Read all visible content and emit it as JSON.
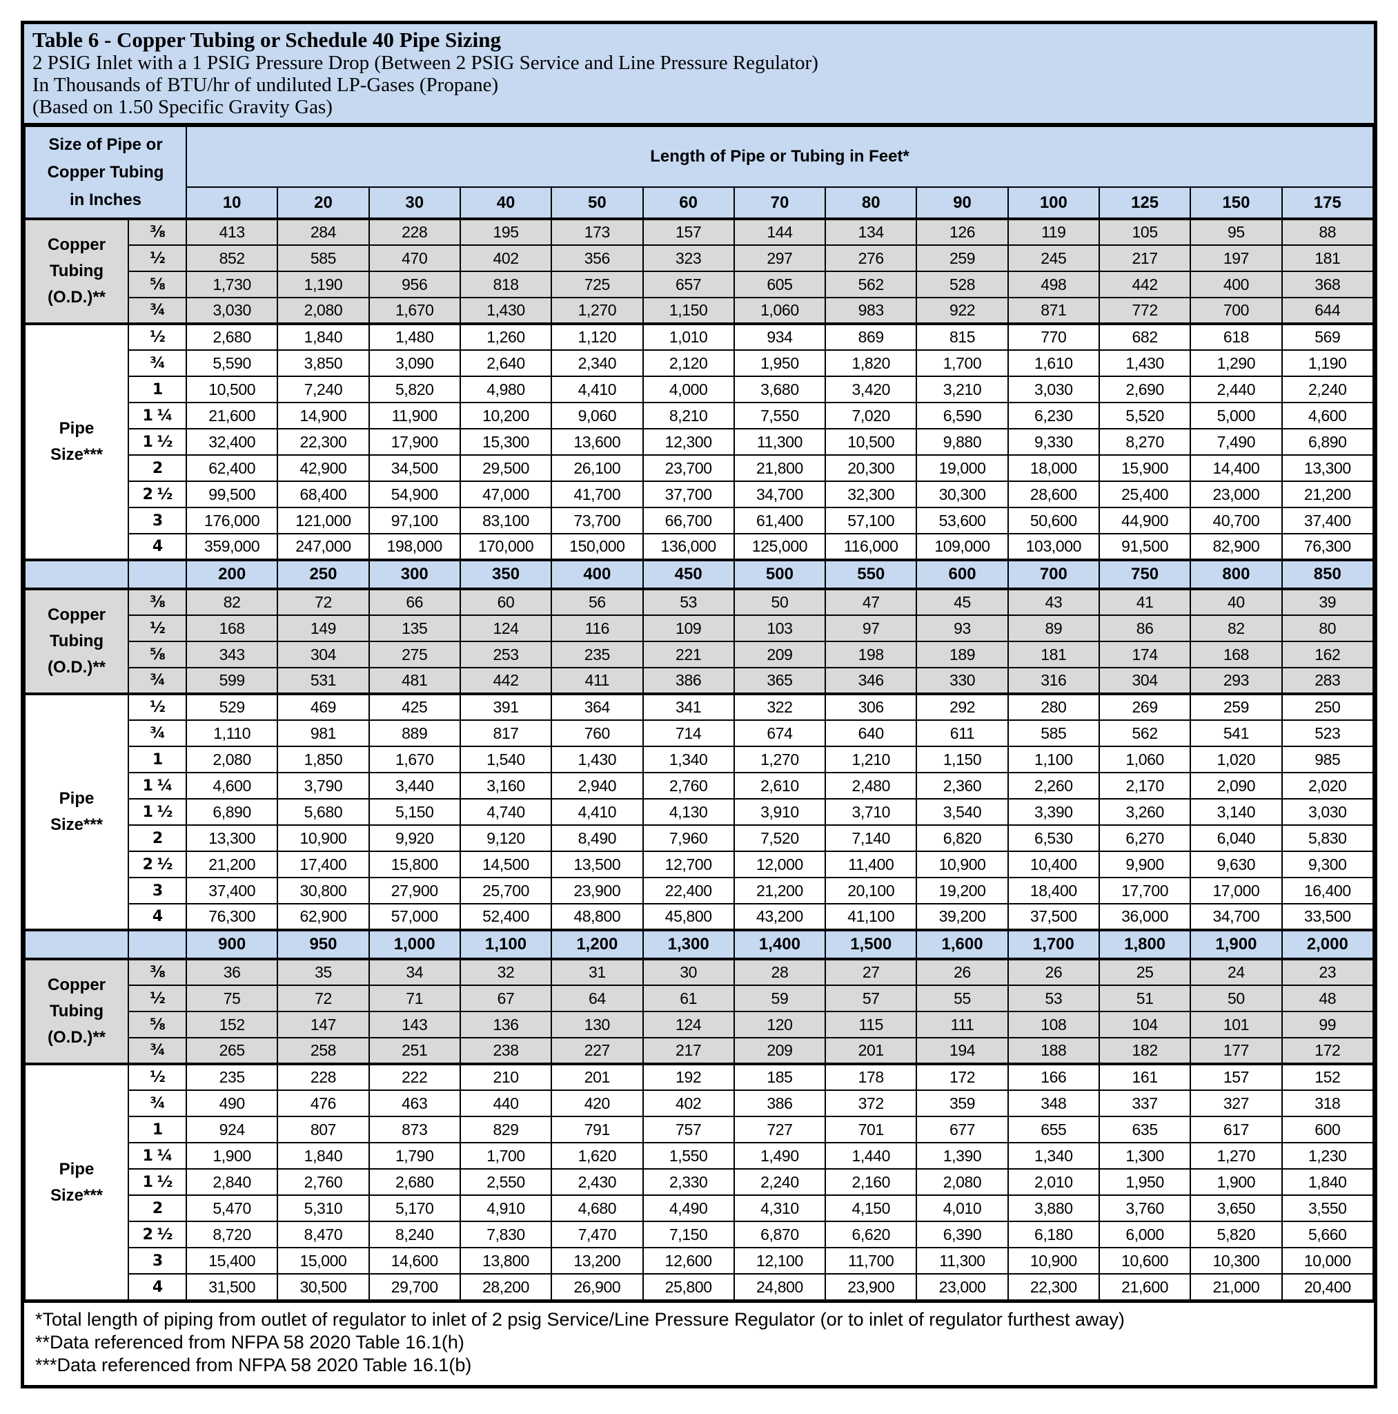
{
  "colors": {
    "header_blue": "#c6d9f1",
    "copper_row_grey": "#d9d9d9",
    "pipe_row_white": "#ffffff",
    "border_black": "#000000"
  },
  "title": {
    "line1": "Table 6 - Copper Tubing or Schedule 40 Pipe Sizing",
    "line2": "2 PSIG Inlet with a 1 PSIG Pressure Drop (Between 2 PSIG Service and Line Pressure Regulator)",
    "line3": "In Thousands of BTU/hr of undiluted LP-Gases (Propane)",
    "line4": "(Based on 1.50 Specific Gravity Gas)"
  },
  "header": {
    "left_lines": [
      "Size of Pipe or",
      "Copper Tubing",
      "in Inches"
    ],
    "right_label": "Length of Pipe or Tubing in Feet*"
  },
  "labels": {
    "copper_lines": [
      "Copper",
      "Tubing",
      "(O.D.)**"
    ],
    "pipe_lines": [
      "Pipe",
      "Size***"
    ]
  },
  "blocks": [
    {
      "lengths": [
        "10",
        "20",
        "30",
        "40",
        "50",
        "60",
        "70",
        "80",
        "90",
        "100",
        "125",
        "150",
        "175"
      ],
      "copper_rows": [
        {
          "size": "⅜",
          "values": [
            "413",
            "284",
            "228",
            "195",
            "173",
            "157",
            "144",
            "134",
            "126",
            "119",
            "105",
            "95",
            "88"
          ]
        },
        {
          "size": "½",
          "values": [
            "852",
            "585",
            "470",
            "402",
            "356",
            "323",
            "297",
            "276",
            "259",
            "245",
            "217",
            "197",
            "181"
          ]
        },
        {
          "size": "⅝",
          "values": [
            "1,730",
            "1,190",
            "956",
            "818",
            "725",
            "657",
            "605",
            "562",
            "528",
            "498",
            "442",
            "400",
            "368"
          ]
        },
        {
          "size": "¾",
          "values": [
            "3,030",
            "2,080",
            "1,670",
            "1,430",
            "1,270",
            "1,150",
            "1,060",
            "983",
            "922",
            "871",
            "772",
            "700",
            "644"
          ]
        }
      ],
      "pipe_rows": [
        {
          "size": "½",
          "values": [
            "2,680",
            "1,840",
            "1,480",
            "1,260",
            "1,120",
            "1,010",
            "934",
            "869",
            "815",
            "770",
            "682",
            "618",
            "569"
          ]
        },
        {
          "size": "¾",
          "values": [
            "5,590",
            "3,850",
            "3,090",
            "2,640",
            "2,340",
            "2,120",
            "1,950",
            "1,820",
            "1,700",
            "1,610",
            "1,430",
            "1,290",
            "1,190"
          ]
        },
        {
          "size": "1",
          "values": [
            "10,500",
            "7,240",
            "5,820",
            "4,980",
            "4,410",
            "4,000",
            "3,680",
            "3,420",
            "3,210",
            "3,030",
            "2,690",
            "2,440",
            "2,240"
          ]
        },
        {
          "size": "1 ¼",
          "values": [
            "21,600",
            "14,900",
            "11,900",
            "10,200",
            "9,060",
            "8,210",
            "7,550",
            "7,020",
            "6,590",
            "6,230",
            "5,520",
            "5,000",
            "4,600"
          ]
        },
        {
          "size": "1 ½",
          "values": [
            "32,400",
            "22,300",
            "17,900",
            "15,300",
            "13,600",
            "12,300",
            "11,300",
            "10,500",
            "9,880",
            "9,330",
            "8,270",
            "7,490",
            "6,890"
          ]
        },
        {
          "size": "2",
          "values": [
            "62,400",
            "42,900",
            "34,500",
            "29,500",
            "26,100",
            "23,700",
            "21,800",
            "20,300",
            "19,000",
            "18,000",
            "15,900",
            "14,400",
            "13,300"
          ]
        },
        {
          "size": "2 ½",
          "values": [
            "99,500",
            "68,400",
            "54,900",
            "47,000",
            "41,700",
            "37,700",
            "34,700",
            "32,300",
            "30,300",
            "28,600",
            "25,400",
            "23,000",
            "21,200"
          ]
        },
        {
          "size": "3",
          "values": [
            "176,000",
            "121,000",
            "97,100",
            "83,100",
            "73,700",
            "66,700",
            "61,400",
            "57,100",
            "53,600",
            "50,600",
            "44,900",
            "40,700",
            "37,400"
          ]
        },
        {
          "size": "4",
          "values": [
            "359,000",
            "247,000",
            "198,000",
            "170,000",
            "150,000",
            "136,000",
            "125,000",
            "116,000",
            "109,000",
            "103,000",
            "91,500",
            "82,900",
            "76,300"
          ]
        }
      ]
    },
    {
      "lengths": [
        "200",
        "250",
        "300",
        "350",
        "400",
        "450",
        "500",
        "550",
        "600",
        "700",
        "750",
        "800",
        "850"
      ],
      "copper_rows": [
        {
          "size": "⅜",
          "values": [
            "82",
            "72",
            "66",
            "60",
            "56",
            "53",
            "50",
            "47",
            "45",
            "43",
            "41",
            "40",
            "39"
          ]
        },
        {
          "size": "½",
          "values": [
            "168",
            "149",
            "135",
            "124",
            "116",
            "109",
            "103",
            "97",
            "93",
            "89",
            "86",
            "82",
            "80"
          ]
        },
        {
          "size": "⅝",
          "values": [
            "343",
            "304",
            "275",
            "253",
            "235",
            "221",
            "209",
            "198",
            "189",
            "181",
            "174",
            "168",
            "162"
          ]
        },
        {
          "size": "¾",
          "values": [
            "599",
            "531",
            "481",
            "442",
            "411",
            "386",
            "365",
            "346",
            "330",
            "316",
            "304",
            "293",
            "283"
          ]
        }
      ],
      "pipe_rows": [
        {
          "size": "½",
          "values": [
            "529",
            "469",
            "425",
            "391",
            "364",
            "341",
            "322",
            "306",
            "292",
            "280",
            "269",
            "259",
            "250"
          ]
        },
        {
          "size": "¾",
          "values": [
            "1,110",
            "981",
            "889",
            "817",
            "760",
            "714",
            "674",
            "640",
            "611",
            "585",
            "562",
            "541",
            "523"
          ]
        },
        {
          "size": "1",
          "values": [
            "2,080",
            "1,850",
            "1,670",
            "1,540",
            "1,430",
            "1,340",
            "1,270",
            "1,210",
            "1,150",
            "1,100",
            "1,060",
            "1,020",
            "985"
          ]
        },
        {
          "size": "1 ¼",
          "values": [
            "4,600",
            "3,790",
            "3,440",
            "3,160",
            "2,940",
            "2,760",
            "2,610",
            "2,480",
            "2,360",
            "2,260",
            "2,170",
            "2,090",
            "2,020"
          ]
        },
        {
          "size": "1 ½",
          "values": [
            "6,890",
            "5,680",
            "5,150",
            "4,740",
            "4,410",
            "4,130",
            "3,910",
            "3,710",
            "3,540",
            "3,390",
            "3,260",
            "3,140",
            "3,030"
          ]
        },
        {
          "size": "2",
          "values": [
            "13,300",
            "10,900",
            "9,920",
            "9,120",
            "8,490",
            "7,960",
            "7,520",
            "7,140",
            "6,820",
            "6,530",
            "6,270",
            "6,040",
            "5,830"
          ]
        },
        {
          "size": "2 ½",
          "values": [
            "21,200",
            "17,400",
            "15,800",
            "14,500",
            "13,500",
            "12,700",
            "12,000",
            "11,400",
            "10,900",
            "10,400",
            "9,900",
            "9,630",
            "9,300"
          ]
        },
        {
          "size": "3",
          "values": [
            "37,400",
            "30,800",
            "27,900",
            "25,700",
            "23,900",
            "22,400",
            "21,200",
            "20,100",
            "19,200",
            "18,400",
            "17,700",
            "17,000",
            "16,400"
          ]
        },
        {
          "size": "4",
          "values": [
            "76,300",
            "62,900",
            "57,000",
            "52,400",
            "48,800",
            "45,800",
            "43,200",
            "41,100",
            "39,200",
            "37,500",
            "36,000",
            "34,700",
            "33,500"
          ]
        }
      ]
    },
    {
      "lengths": [
        "900",
        "950",
        "1,000",
        "1,100",
        "1,200",
        "1,300",
        "1,400",
        "1,500",
        "1,600",
        "1,700",
        "1,800",
        "1,900",
        "2,000"
      ],
      "copper_rows": [
        {
          "size": "⅜",
          "values": [
            "36",
            "35",
            "34",
            "32",
            "31",
            "30",
            "28",
            "27",
            "26",
            "26",
            "25",
            "24",
            "23"
          ]
        },
        {
          "size": "½",
          "values": [
            "75",
            "72",
            "71",
            "67",
            "64",
            "61",
            "59",
            "57",
            "55",
            "53",
            "51",
            "50",
            "48"
          ]
        },
        {
          "size": "⅝",
          "values": [
            "152",
            "147",
            "143",
            "136",
            "130",
            "124",
            "120",
            "115",
            "111",
            "108",
            "104",
            "101",
            "99"
          ]
        },
        {
          "size": "¾",
          "values": [
            "265",
            "258",
            "251",
            "238",
            "227",
            "217",
            "209",
            "201",
            "194",
            "188",
            "182",
            "177",
            "172"
          ]
        }
      ],
      "pipe_rows": [
        {
          "size": "½",
          "values": [
            "235",
            "228",
            "222",
            "210",
            "201",
            "192",
            "185",
            "178",
            "172",
            "166",
            "161",
            "157",
            "152"
          ]
        },
        {
          "size": "¾",
          "values": [
            "490",
            "476",
            "463",
            "440",
            "420",
            "402",
            "386",
            "372",
            "359",
            "348",
            "337",
            "327",
            "318"
          ]
        },
        {
          "size": "1",
          "values": [
            "924",
            "807",
            "873",
            "829",
            "791",
            "757",
            "727",
            "701",
            "677",
            "655",
            "635",
            "617",
            "600"
          ]
        },
        {
          "size": "1 ¼",
          "values": [
            "1,900",
            "1,840",
            "1,790",
            "1,700",
            "1,620",
            "1,550",
            "1,490",
            "1,440",
            "1,390",
            "1,340",
            "1,300",
            "1,270",
            "1,230"
          ]
        },
        {
          "size": "1 ½",
          "values": [
            "2,840",
            "2,760",
            "2,680",
            "2,550",
            "2,430",
            "2,330",
            "2,240",
            "2,160",
            "2,080",
            "2,010",
            "1,950",
            "1,900",
            "1,840"
          ]
        },
        {
          "size": "2",
          "values": [
            "5,470",
            "5,310",
            "5,170",
            "4,910",
            "4,680",
            "4,490",
            "4,310",
            "4,150",
            "4,010",
            "3,880",
            "3,760",
            "3,650",
            "3,550"
          ]
        },
        {
          "size": "2 ½",
          "values": [
            "8,720",
            "8,470",
            "8,240",
            "7,830",
            "7,470",
            "7,150",
            "6,870",
            "6,620",
            "6,390",
            "6,180",
            "6,000",
            "5,820",
            "5,660"
          ]
        },
        {
          "size": "3",
          "values": [
            "15,400",
            "15,000",
            "14,600",
            "13,800",
            "13,200",
            "12,600",
            "12,100",
            "11,700",
            "11,300",
            "10,900",
            "10,600",
            "10,300",
            "10,000"
          ]
        },
        {
          "size": "4",
          "values": [
            "31,500",
            "30,500",
            "29,700",
            "28,200",
            "26,900",
            "25,800",
            "24,800",
            "23,900",
            "23,000",
            "22,300",
            "21,600",
            "21,000",
            "20,400"
          ]
        }
      ]
    }
  ],
  "footnotes": [
    "*Total length of piping from outlet of regulator to inlet of 2 psig Service/Line Pressure Regulator (or to inlet of regulator furthest away)",
    "**Data referenced from NFPA 58 2020 Table 16.1(h)",
    "***Data referenced from NFPA 58 2020 Table 16.1(b)"
  ]
}
